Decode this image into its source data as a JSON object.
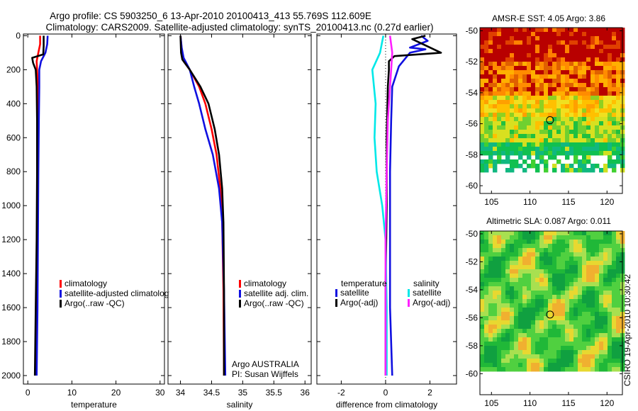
{
  "header": {
    "title_line1": "Argo profile: CS 5903250_6 13-Apr-2010 20100413_413 55.769S 112.609E",
    "title_line2": "Climatology: CARS2009. Satellite-adjusted climatology: synTS_20100413.nc (0.27d earlier)"
  },
  "side_label": "CSIRO 19-Apr-2010 10:30:42",
  "colors": {
    "red": "#ff0000",
    "blue": "#1010e0",
    "black": "#000000",
    "cyan": "#00e8e8",
    "magenta": "#ff20ff"
  },
  "chart_data": [
    {
      "id": "temperature",
      "type": "line",
      "xlabel": "temperature",
      "xlim": [
        -1,
        31
      ],
      "ylim": [
        2050,
        -10
      ],
      "xticks": [
        0,
        10,
        20,
        30
      ],
      "yticks": [
        0,
        200,
        400,
        600,
        800,
        1000,
        1200,
        1400,
        1600,
        1800,
        2000
      ],
      "legend": {
        "position": "lower-right",
        "entries": [
          "climatology",
          "satellite-adjusted climatology",
          "Argo(..raw -QC)"
        ]
      },
      "series": [
        {
          "name": "climatology",
          "color": "red",
          "points": [
            [
              2.8,
              0
            ],
            [
              2.8,
              50
            ],
            [
              2.4,
              100
            ],
            [
              2.0,
              150
            ],
            [
              2.1,
              200
            ],
            [
              2.3,
              300
            ],
            [
              2.3,
              500
            ],
            [
              2.2,
              800
            ],
            [
              2.1,
              1200
            ],
            [
              1.9,
              1600
            ],
            [
              1.7,
              2000
            ]
          ]
        },
        {
          "name": "satellite-adjusted climatology",
          "color": "blue",
          "points": [
            [
              4.5,
              0
            ],
            [
              4.4,
              50
            ],
            [
              4.0,
              100
            ],
            [
              3.0,
              150
            ],
            [
              2.6,
              200
            ],
            [
              2.6,
              300
            ],
            [
              2.5,
              500
            ],
            [
              2.4,
              800
            ],
            [
              2.3,
              1200
            ],
            [
              2.2,
              1600
            ],
            [
              2.0,
              2000
            ]
          ]
        },
        {
          "name": "Argo(..raw -QC)",
          "color": "black",
          "points": [
            [
              3.6,
              0
            ],
            [
              3.6,
              60
            ],
            [
              3.5,
              110
            ],
            [
              1.0,
              130
            ],
            [
              1.2,
              160
            ],
            [
              1.8,
              200
            ],
            [
              2.0,
              300
            ],
            [
              2.1,
              500
            ],
            [
              2.1,
              800
            ],
            [
              2.0,
              1200
            ],
            [
              1.8,
              1600
            ],
            [
              1.6,
              2000
            ]
          ]
        }
      ]
    },
    {
      "id": "salinity",
      "type": "line",
      "xlabel": "salinity",
      "xlim": [
        33.8,
        36.1
      ],
      "ylim": [
        2050,
        -10
      ],
      "xticks": [
        34,
        34.5,
        35,
        35.5,
        36
      ],
      "yticks": [
        0,
        200,
        400,
        600,
        800,
        1000,
        1200,
        1400,
        1600,
        1800,
        2000
      ],
      "legend": {
        "position": "lower-right",
        "entries": [
          "climatology",
          "satellite adj. clim.",
          "Argo(..raw -QC)"
        ]
      },
      "annotations": [
        "Argo AUSTRALIA",
        "PI: Susan Wijffels"
      ],
      "series": [
        {
          "name": "climatology",
          "color": "red",
          "points": [
            [
              34.0,
              0
            ],
            [
              34.02,
              80
            ],
            [
              34.05,
              150
            ],
            [
              34.15,
              200
            ],
            [
              34.3,
              300
            ],
            [
              34.4,
              400
            ],
            [
              34.5,
              550
            ],
            [
              34.58,
              700
            ],
            [
              34.64,
              900
            ],
            [
              34.67,
              1100
            ],
            [
              34.69,
              1500
            ],
            [
              34.7,
              2000
            ]
          ]
        },
        {
          "name": "satellite adj. clim.",
          "color": "blue",
          "points": [
            [
              34.0,
              0
            ],
            [
              34.02,
              70
            ],
            [
              34.05,
              130
            ],
            [
              34.15,
              200
            ],
            [
              34.22,
              300
            ],
            [
              34.3,
              400
            ],
            [
              34.4,
              550
            ],
            [
              34.52,
              700
            ],
            [
              34.62,
              900
            ],
            [
              34.67,
              1100
            ],
            [
              34.7,
              1500
            ],
            [
              34.72,
              2000
            ]
          ]
        },
        {
          "name": "Argo(..raw -QC)",
          "color": "black",
          "points": [
            [
              34.0,
              0
            ],
            [
              34.01,
              100
            ],
            [
              34.03,
              140
            ],
            [
              34.15,
              200
            ],
            [
              34.32,
              300
            ],
            [
              34.45,
              400
            ],
            [
              34.55,
              550
            ],
            [
              34.62,
              700
            ],
            [
              34.67,
              900
            ],
            [
              34.69,
              1100
            ],
            [
              34.7,
              1500
            ],
            [
              34.7,
              2000
            ]
          ]
        }
      ]
    },
    {
      "id": "difference",
      "type": "line",
      "xlabel": "difference from climatology",
      "xlim": [
        -3.1,
        3.2
      ],
      "ylim": [
        2050,
        -10
      ],
      "xticks": [
        -2,
        0,
        2
      ],
      "yticks": [
        0,
        200,
        400,
        600,
        800,
        1000,
        1200,
        1400,
        1600,
        1800,
        2000
      ],
      "legend": {
        "position": "middle",
        "group_titles": [
          "temperature",
          "salinity"
        ],
        "entries": [
          "satellite",
          "Argo(-adj)",
          "satellite",
          "Argo(-adj)"
        ]
      },
      "series": [
        {
          "name": "temperature satellite",
          "color": "blue",
          "points": [
            [
              1.6,
              0
            ],
            [
              1.9,
              30
            ],
            [
              1.1,
              70
            ],
            [
              1.8,
              80
            ],
            [
              1.1,
              100
            ],
            [
              0.6,
              180
            ],
            [
              0.3,
              300
            ],
            [
              0.25,
              500
            ],
            [
              0.2,
              800
            ],
            [
              0.2,
              1200
            ],
            [
              0.2,
              1600
            ],
            [
              0.3,
              2000
            ]
          ]
        },
        {
          "name": "temperature Argo(-adj)",
          "color": "black",
          "points": [
            [
              1.8,
              0
            ],
            [
              1.2,
              20
            ],
            [
              2.5,
              100
            ],
            [
              0.4,
              120
            ],
            [
              0.15,
              150
            ],
            [
              0.15,
              200
            ],
            [
              0.1,
              300
            ],
            [
              0.05,
              600
            ],
            [
              0.05,
              1000
            ],
            [
              0.0,
              1500
            ],
            [
              0.0,
              2000
            ]
          ]
        },
        {
          "name": "salinity satellite",
          "color": "cyan",
          "points": [
            [
              -0.1,
              0
            ],
            [
              -0.25,
              100
            ],
            [
              -0.6,
              200
            ],
            [
              -0.45,
              400
            ],
            [
              -0.5,
              600
            ],
            [
              -0.4,
              800
            ],
            [
              -0.15,
              1000
            ],
            [
              0.0,
              1200
            ],
            [
              0.05,
              1600
            ],
            [
              0.05,
              2000
            ]
          ]
        },
        {
          "name": "salinity Argo(-adj)",
          "color": "magenta",
          "points": [
            [
              0.2,
              0
            ],
            [
              0.3,
              100
            ],
            [
              0.25,
              200
            ],
            [
              0.2,
              300
            ],
            [
              0.1,
              500
            ],
            [
              0.05,
              800
            ],
            [
              0.0,
              1200
            ],
            [
              0.0,
              2000
            ]
          ]
        }
      ]
    },
    {
      "id": "sst-map",
      "type": "heatmap",
      "title": "AMSR-E SST: 4.05 Argo: 3.86",
      "xlim": [
        103.5,
        122
      ],
      "ylim": [
        -60.5,
        -49.8
      ],
      "xticks": [
        105,
        110,
        115,
        120
      ],
      "yticks": [
        -50,
        -52,
        -54,
        -56,
        -58,
        -60
      ],
      "marker": {
        "lon": 112.6,
        "lat": -55.77
      }
    },
    {
      "id": "sla-map",
      "type": "heatmap",
      "title": "Altimetric SLA: 0.087 Argo: 0.011",
      "xlim": [
        103.5,
        122
      ],
      "ylim": [
        -61.5,
        -49.8
      ],
      "xticks": [
        105,
        110,
        115,
        120
      ],
      "yticks": [
        -50,
        -52,
        -54,
        -56,
        -58,
        -60
      ],
      "marker": {
        "lon": 112.6,
        "lat": -55.77
      }
    }
  ]
}
